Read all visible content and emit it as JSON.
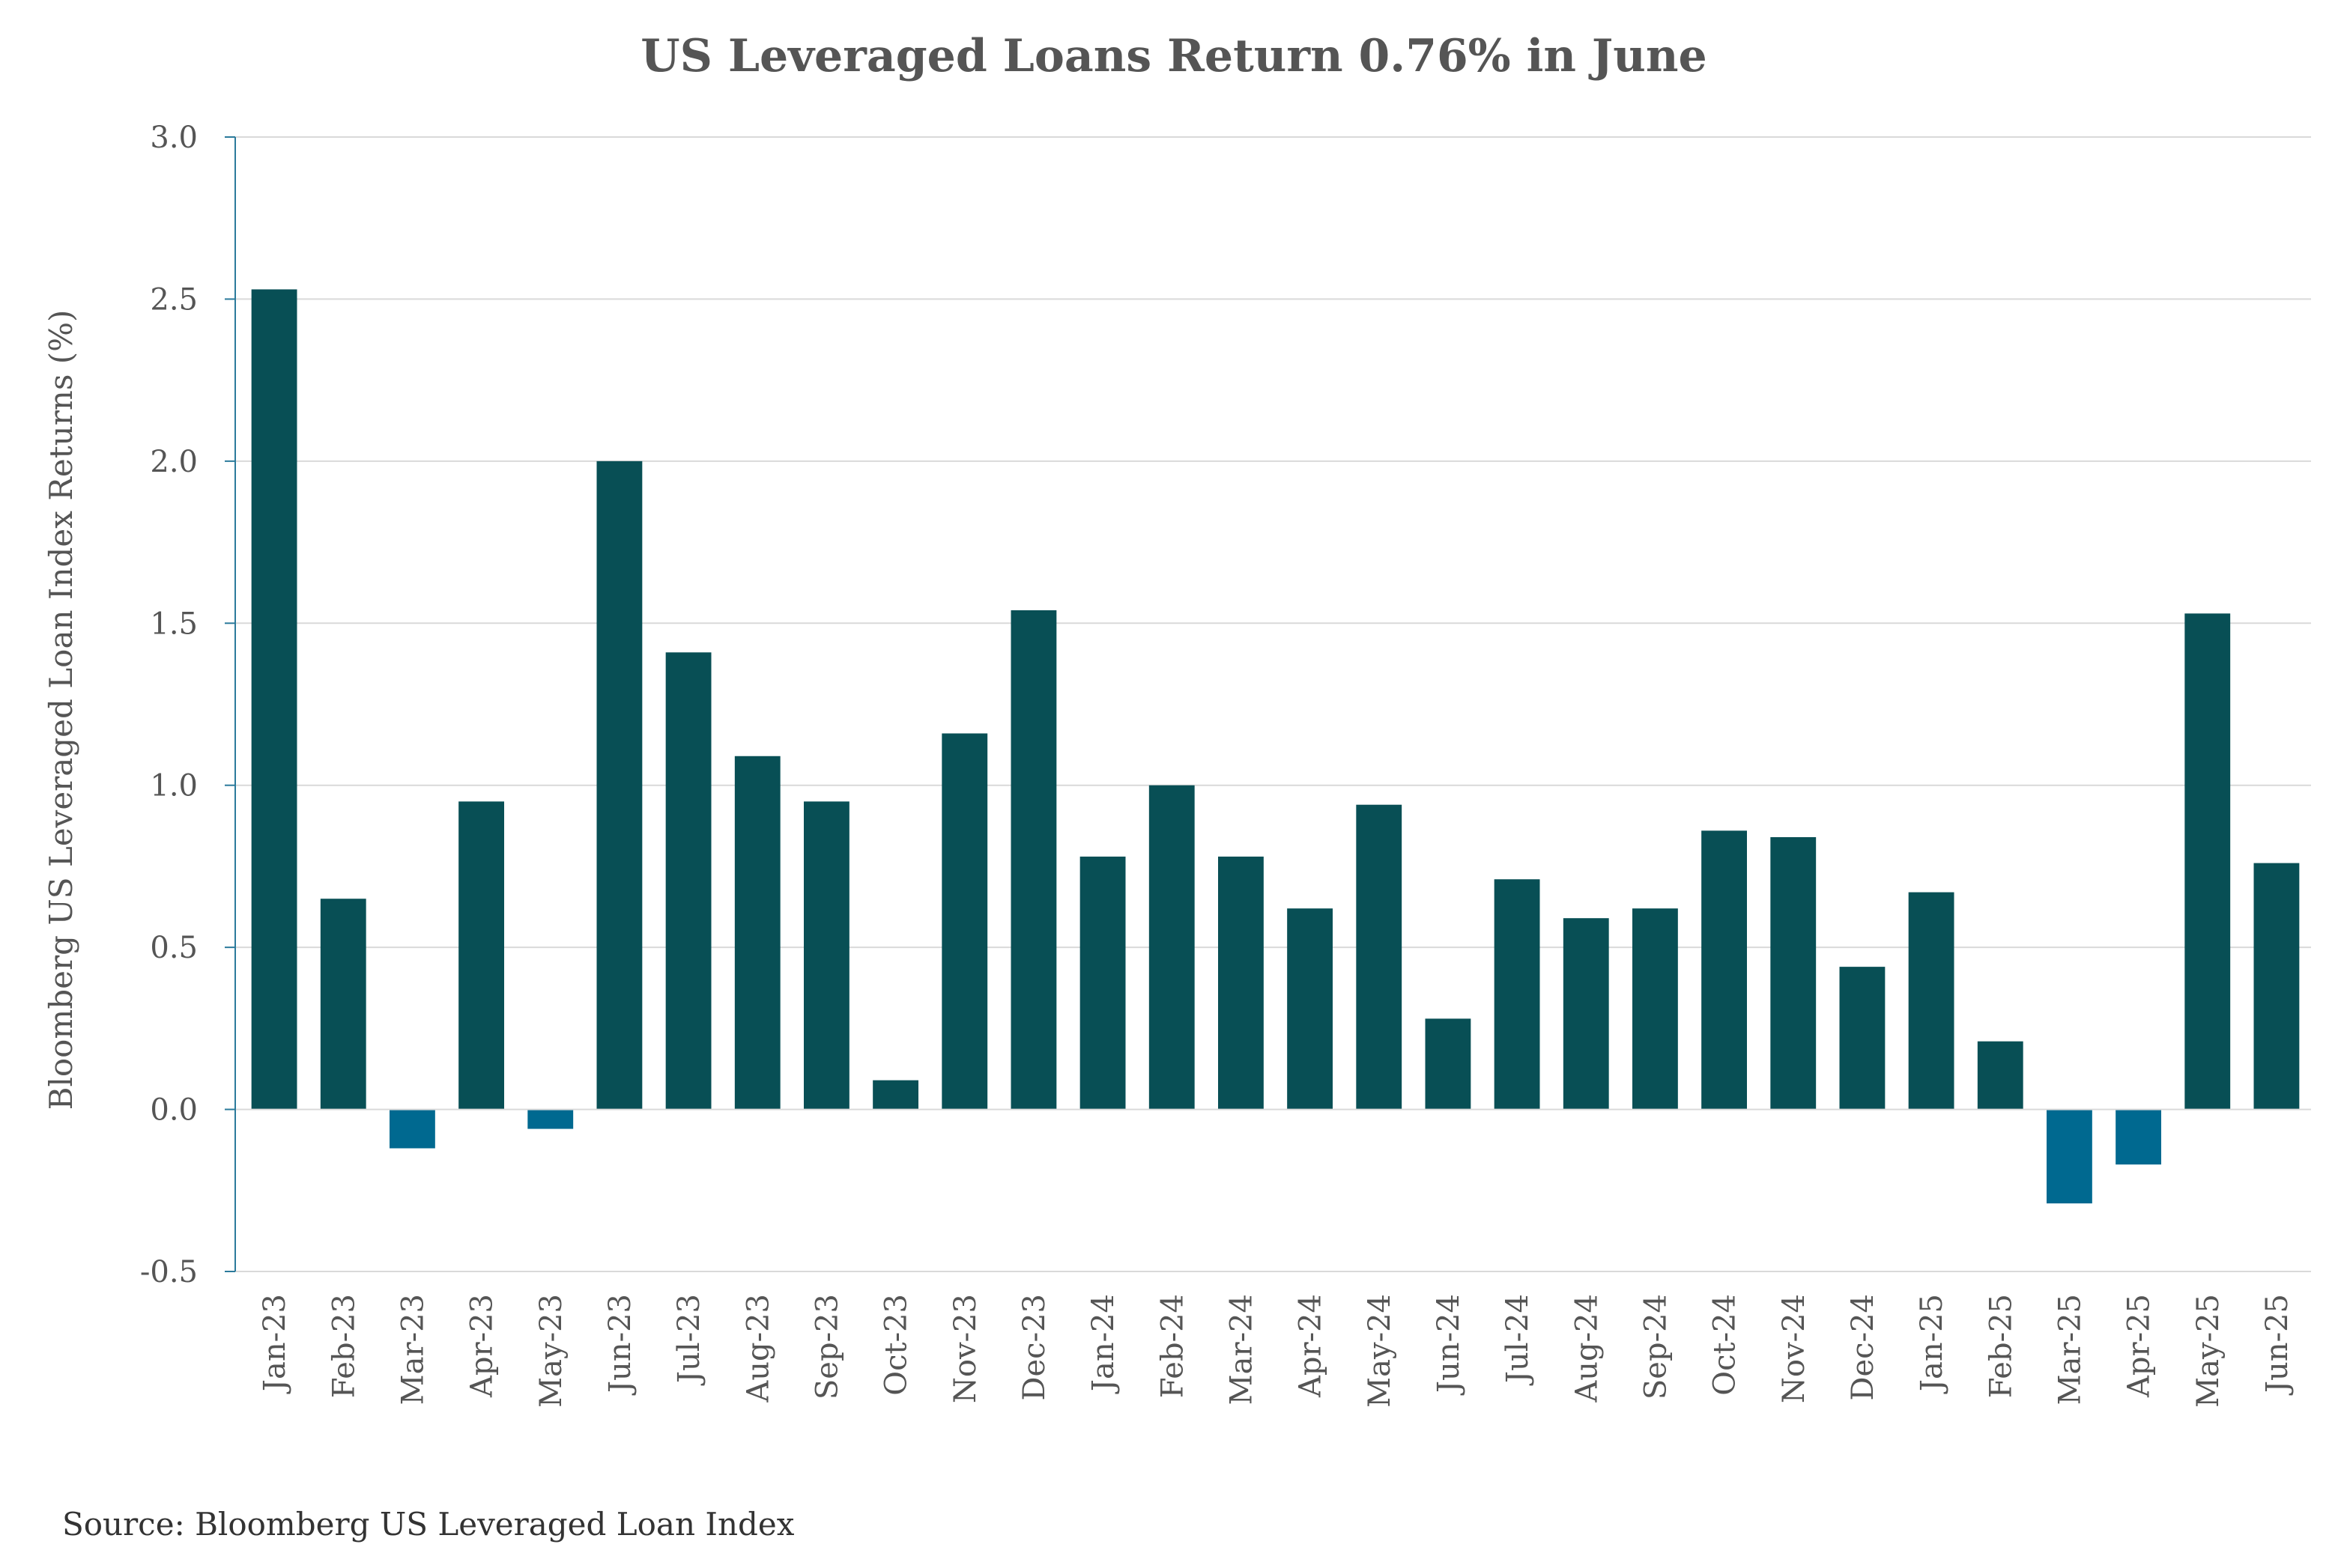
{
  "chart_data": {
    "type": "bar",
    "title": "US Leveraged Loans Return 0.76% in June",
    "xlabel": "",
    "ylabel": "Bloomberg US Leveraged Loan Index Returns (%)",
    "ylim": [
      -0.5,
      3.0
    ],
    "yticks": [
      -0.5,
      0.0,
      0.5,
      1.0,
      1.5,
      2.0,
      2.5,
      3.0
    ],
    "ytick_labels": [
      "-0.5",
      "0.0",
      "0.5",
      "1.0",
      "1.5",
      "2.0",
      "2.5",
      "3.0"
    ],
    "grid": true,
    "categories": [
      "Jan-23",
      "Feb-23",
      "Mar-23",
      "Apr-23",
      "May-23",
      "Jun-23",
      "Jul-23",
      "Aug-23",
      "Sep-23",
      "Oct-23",
      "Nov-23",
      "Dec-23",
      "Jan-24",
      "Feb-24",
      "Mar-24",
      "Apr-24",
      "May-24",
      "Jun-24",
      "Jul-24",
      "Aug-24",
      "Sep-24",
      "Oct-24",
      "Nov-24",
      "Dec-24",
      "Jan-25",
      "Feb-25",
      "Mar-25",
      "Apr-25",
      "May-25",
      "Jun-25"
    ],
    "values": [
      2.53,
      0.65,
      -0.12,
      0.95,
      -0.06,
      2.0,
      1.41,
      1.09,
      0.95,
      0.09,
      1.16,
      1.54,
      0.78,
      1.0,
      0.78,
      0.62,
      0.94,
      0.28,
      0.71,
      0.59,
      0.62,
      0.86,
      0.84,
      0.44,
      0.67,
      0.21,
      -0.29,
      -0.17,
      1.53,
      0.76
    ],
    "colors": {
      "positive": "#084F55",
      "negative": "#006990"
    }
  },
  "source_note": "Source: Bloomberg US Leveraged Loan Index"
}
